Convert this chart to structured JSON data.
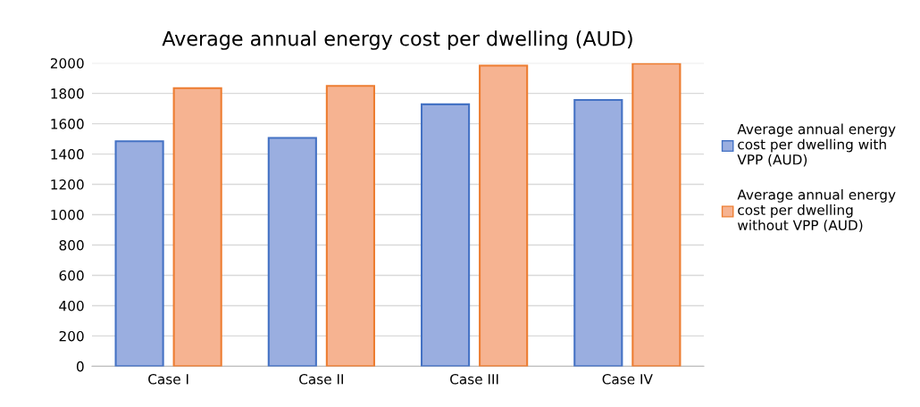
{
  "chart_data": {
    "type": "bar",
    "title": "Average annual energy cost per dwelling (AUD)",
    "categories": [
      "Case I",
      "Case II",
      "Case III",
      "Case IV"
    ],
    "series": [
      {
        "name": "Average annual energy cost per dwelling with VPP (AUD)",
        "color": "#9aaee0",
        "values": [
          1484,
          1507,
          1728,
          1757
        ]
      },
      {
        "name": "Average annual energy cost per dwelling without VPP (AUD)",
        "color": "#f6b391",
        "values": [
          1835,
          1849,
          1983,
          1997
        ]
      }
    ],
    "ylim": [
      0,
      2000
    ],
    "yticks": [
      0,
      200,
      400,
      600,
      800,
      1000,
      1200,
      1400,
      1600,
      1800,
      2000
    ],
    "grid": "y",
    "legend": "right"
  }
}
